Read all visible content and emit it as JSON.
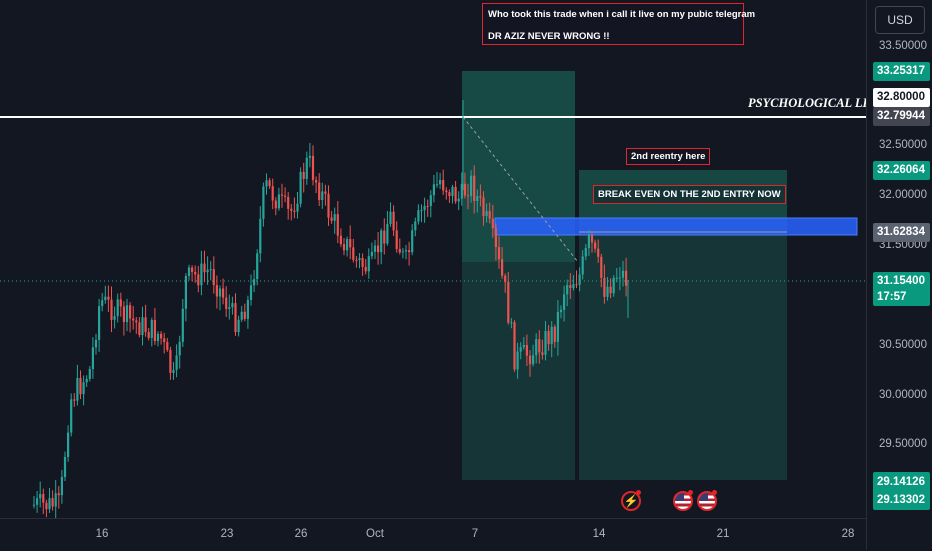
{
  "currency": "USD",
  "colors": {
    "background": "#131722",
    "candle_up": "#26a69a",
    "candle_down": "#ef5350",
    "zone_green": "#1a5c50",
    "zone_blue": "#2962ff",
    "annotation_border": "#e0262b"
  },
  "annotations": {
    "telegram_line1": "Who took this trade when i call it live on my pubic telegram",
    "telegram_line2": "DR AZIZ NEVER WRONG !!",
    "reentry": "2nd reentry here",
    "break_even": "BREAK EVEN ON THE 2ND ENTRY NOW",
    "psychological_level": "PSYCHOLOGICAL LEVEL"
  },
  "price_axis": {
    "ticks": [
      "33.50000",
      "32.50000",
      "32.00000",
      "31.50000",
      "30.50000",
      "30.00000",
      "29.50000"
    ],
    "badges": [
      {
        "value": "33.25317",
        "style": "green"
      },
      {
        "value": "32.80000",
        "style": "white"
      },
      {
        "value": "32.79944",
        "style": "gray"
      },
      {
        "value": "32.26064",
        "style": "green"
      },
      {
        "value": "31.62834",
        "style": "blue"
      }
    ],
    "current_price": "31.15400",
    "countdown": "17:57",
    "bottom_badges": [
      "29.14126",
      "29.13302"
    ]
  },
  "time_axis": {
    "ticks": [
      "16",
      "23",
      "26",
      "Oct",
      "7",
      "14",
      "21",
      "28"
    ]
  },
  "icons": {
    "lightning": "lightning-icon",
    "flag": "us-flag-icon"
  }
}
